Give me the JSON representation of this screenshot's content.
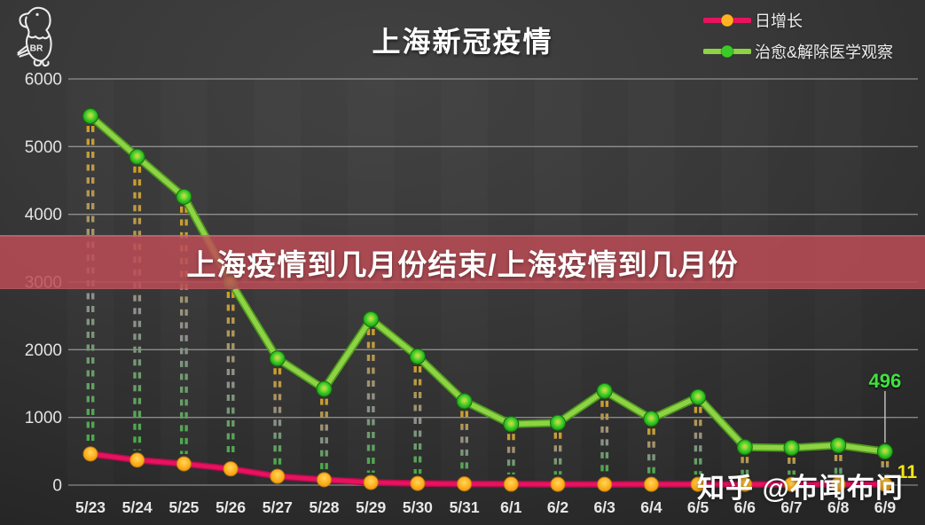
{
  "logo": {
    "text": "BR"
  },
  "header": {
    "title": "上海新冠疫情"
  },
  "legend": {
    "items": [
      {
        "label": "日增长",
        "line_color": "#e8125f",
        "marker_color": "#ffb321"
      },
      {
        "label": "治愈&解除医学观察",
        "line_color": "#8ed344",
        "marker_color": "#3acb28"
      }
    ]
  },
  "overlay_banner": {
    "text": "上海疫情到几月份结束/上海疫情到几月份",
    "bg_color": "#bc4c56"
  },
  "watermark": {
    "text": "知乎 @布闻布问"
  },
  "chart_data": {
    "type": "line",
    "title": "上海新冠疫情",
    "categories": [
      "5/23",
      "5/24",
      "5/25",
      "5/26",
      "5/27",
      "5/28",
      "5/29",
      "5/30",
      "5/31",
      "6/1",
      "6/2",
      "6/3",
      "6/4",
      "6/5",
      "6/6",
      "6/7",
      "6/8",
      "6/9"
    ],
    "series": [
      {
        "name": "日增长",
        "color": "#e8125f",
        "marker_color": "#ffb321",
        "values": [
          460,
          370,
          315,
          240,
          130,
          80,
          40,
          25,
          18,
          14,
          12,
          11,
          11,
          11,
          10,
          10,
          10,
          11
        ]
      },
      {
        "name": "治愈&解除医学观察",
        "color": "#8ed344",
        "marker_color": "#3acb28",
        "values": [
          5450,
          4850,
          4260,
          3000,
          1870,
          1420,
          2450,
          1900,
          1240,
          900,
          920,
          1390,
          980,
          1300,
          560,
          550,
          590,
          496
        ]
      }
    ],
    "ylim": [
      0,
      6000
    ],
    "yticks": [
      6000,
      5000,
      4000,
      3000,
      2000,
      1000,
      0
    ],
    "grid": true,
    "legend_position": "top-right",
    "dropline_colors": [
      "#cf9f26",
      "#8f8f8f",
      "#46ab46"
    ],
    "annotations": [
      {
        "text": "496",
        "x": "6/9",
        "series": "治愈&解除医学观察",
        "color": "#3fe23f"
      },
      {
        "text": "11",
        "x": "6/9",
        "series": "日增长",
        "color": "#f8e613"
      }
    ]
  }
}
